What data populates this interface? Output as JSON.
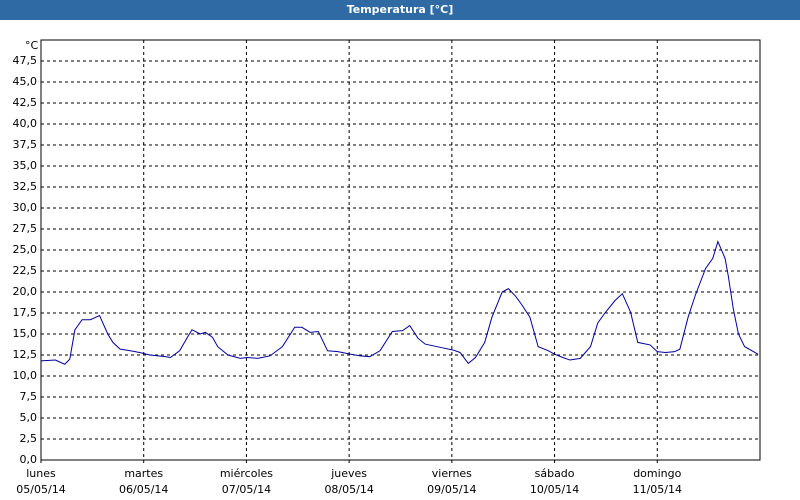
{
  "chart_data": {
    "type": "line",
    "title": "Temperatura [°C]",
    "y_unit": "°C",
    "xlim": [
      0,
      7
    ],
    "xticks": [
      {
        "value": 0,
        "label": [
          "lunes",
          "05/05/14"
        ]
      },
      {
        "value": 1,
        "label": [
          "martes",
          "06/05/14"
        ]
      },
      {
        "value": 2,
        "label": [
          "miércoles",
          "07/05/14"
        ]
      },
      {
        "value": 3,
        "label": [
          "jueves",
          "08/05/14"
        ]
      },
      {
        "value": 4,
        "label": [
          "viernes",
          "09/05/14"
        ]
      },
      {
        "value": 5,
        "label": [
          "sábado",
          "10/05/14"
        ]
      },
      {
        "value": 6,
        "label": [
          "domingo",
          "11/05/14"
        ]
      }
    ],
    "ylim": [
      0,
      50
    ],
    "yticks": [
      {
        "value": 0,
        "label": "0,0"
      },
      {
        "value": 2.5,
        "label": "2,5"
      },
      {
        "value": 5,
        "label": "5,0"
      },
      {
        "value": 7.5,
        "label": "7,5"
      },
      {
        "value": 10,
        "label": "10,0"
      },
      {
        "value": 12.5,
        "label": "12,5"
      },
      {
        "value": 15,
        "label": "15,0"
      },
      {
        "value": 17.5,
        "label": "17,5"
      },
      {
        "value": 20,
        "label": "20,0"
      },
      {
        "value": 22.5,
        "label": "22,5"
      },
      {
        "value": 25,
        "label": "25,0"
      },
      {
        "value": 27.5,
        "label": "27,5"
      },
      {
        "value": 30,
        "label": "30,0"
      },
      {
        "value": 32.5,
        "label": "32,5"
      },
      {
        "value": 35,
        "label": "35,0"
      },
      {
        "value": 37.5,
        "label": "37,5"
      },
      {
        "value": 40,
        "label": "40,0"
      },
      {
        "value": 42.5,
        "label": "42,5"
      },
      {
        "value": 45,
        "label": "45,0"
      },
      {
        "value": 47.5,
        "label": "47,5"
      }
    ],
    "grid": true,
    "x": [
      0,
      0.14,
      0.23,
      0.28,
      0.33,
      0.4,
      0.48,
      0.57,
      0.65,
      0.7,
      0.77,
      0.87,
      0.96,
      1.06,
      1.21,
      1.26,
      1.35,
      1.42,
      1.47,
      1.55,
      1.6,
      1.67,
      1.72,
      1.82,
      1.94,
      2.01,
      2.11,
      2.23,
      2.35,
      2.47,
      2.54,
      2.62,
      2.7,
      2.79,
      2.89,
      3.01,
      3.11,
      3.2,
      3.3,
      3.42,
      3.52,
      3.59,
      3.67,
      3.74,
      3.89,
      4.01,
      4.08,
      4.16,
      4.23,
      4.32,
      4.39,
      4.49,
      4.55,
      4.62,
      4.68,
      4.76,
      4.84,
      4.94,
      5.0,
      5.08,
      5.15,
      5.25,
      5.35,
      5.42,
      5.49,
      5.59,
      5.66,
      5.74,
      5.81,
      5.93,
      6.0,
      6.08,
      6.17,
      6.22,
      6.3,
      6.37,
      6.47,
      6.54,
      6.59,
      6.66,
      6.69,
      6.74,
      6.79,
      6.85,
      6.98
    ],
    "series": [
      {
        "color": "#0000a0",
        "values": [
          11.8,
          11.9,
          11.4,
          12,
          15.5,
          16.7,
          16.7,
          17.2,
          15,
          14,
          13.2,
          13,
          12.8,
          12.5,
          12.3,
          12.2,
          13,
          14.5,
          15.5,
          15,
          15.2,
          14.6,
          13.5,
          12.5,
          12.1,
          12.2,
          12.1,
          12.4,
          13.5,
          15.8,
          15.8,
          15.2,
          15.3,
          13,
          12.9,
          12.6,
          12.4,
          12.3,
          13,
          15.3,
          15.4,
          16,
          14.5,
          13.8,
          13.4,
          13.1,
          12.8,
          11.5,
          12.2,
          14,
          17,
          20,
          20.4,
          19.5,
          18.5,
          17,
          13.5,
          13,
          12.6,
          12.2,
          11.9,
          12.1,
          13.5,
          16.3,
          17.5,
          19,
          19.8,
          17.6,
          14,
          13.7,
          12.9,
          12.8,
          12.9,
          13.2,
          17,
          19.6,
          22.8,
          24,
          26,
          24,
          22,
          18,
          15,
          13.5,
          12.6
        ]
      }
    ]
  }
}
